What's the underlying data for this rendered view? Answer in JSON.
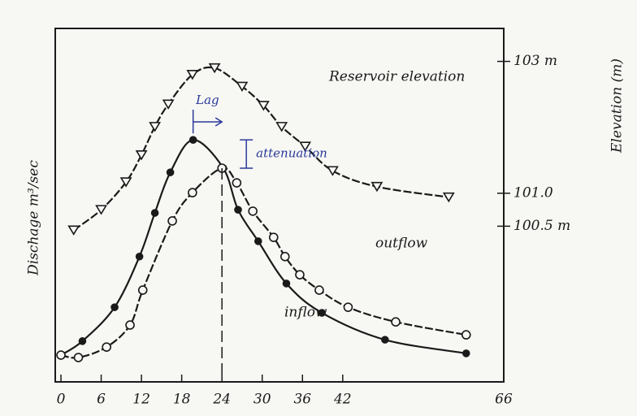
{
  "chart_data": {
    "type": "line",
    "y_label": "Dischage m³/sec",
    "y2_label": "Elevation (m)",
    "annotations": [
      "Lag",
      "attenuation"
    ],
    "xlim": [
      0,
      66
    ],
    "xticks": [
      0,
      6,
      12,
      18,
      24,
      30,
      36,
      42,
      66
    ],
    "ylim": [
      0,
      100
    ],
    "y2lim": [
      98.2,
      103.5
    ],
    "y2ticks": [
      {
        "value": 103,
        "label": "103 m"
      },
      {
        "value": 101,
        "label": "101.0"
      },
      {
        "value": 100.5,
        "label": "100.5 m"
      }
    ],
    "series": [
      {
        "name": "inflow",
        "color": "#1a1a1a",
        "marker": "filled-circle",
        "x": [
          0,
          3.2,
          8.0,
          11.7,
          14.0,
          16.3,
          19.7,
          24.2,
          26.4,
          29.4,
          33.6,
          38.9,
          48.3,
          60.4
        ],
        "values": [
          6.5,
          10.5,
          20.2,
          34.7,
          47.2,
          58.8,
          68.1,
          60.0,
          48.1,
          39.1,
          27.0,
          18.6,
          10.9,
          7.0
        ]
      },
      {
        "name": "outflow",
        "color": "#1a1a1a",
        "marker": "open-circle",
        "x": [
          0,
          2.6,
          6.8,
          10.3,
          12.2,
          16.6,
          19.6,
          24,
          26.2,
          28.6,
          31.7,
          33.4,
          35.6,
          38.5,
          42.8,
          49.9,
          60.4
        ],
        "values": [
          6.5,
          5.8,
          8.8,
          15.1,
          25.1,
          44.9,
          53.0,
          60.0,
          55.8,
          47.7,
          40.2,
          34.7,
          29.5,
          25.1,
          20.2,
          16.0,
          12.3
        ]
      },
      {
        "name": "Reservoir elevation",
        "color": "#1a1a1a",
        "marker": "open-triangle",
        "axis": "y2",
        "x": [
          1.9,
          6,
          9.7,
          12,
          14.0,
          16.0,
          19.6,
          22.9,
          27.0,
          30.2,
          32.9,
          36.4,
          40.5,
          47.1,
          57.8
        ],
        "values": [
          100.44,
          100.75,
          101.17,
          101.58,
          102.01,
          102.35,
          102.8,
          102.9,
          102.62,
          102.33,
          102.01,
          101.71,
          101.34,
          101.1,
          100.94
        ]
      }
    ]
  }
}
